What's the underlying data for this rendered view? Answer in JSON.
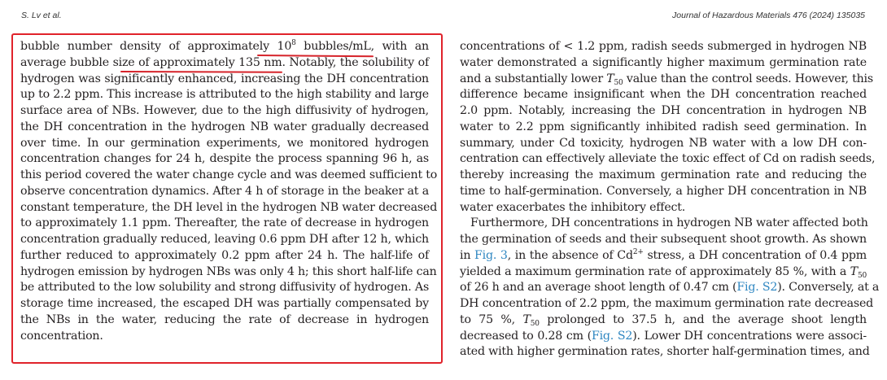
{
  "header": {
    "authors": "S. Lv et al.",
    "journal": "Journal of Hazardous Materials 476 (2024) 135035"
  },
  "left": {
    "l01": [
      "bubble number density of approximately ",
      "10",
      "8",
      " bubbles/mL",
      ", with an"
    ],
    "l02": [
      "average bubble ",
      "size of approximately 135 nm",
      ". Notably, the solubility of"
    ],
    "l03": "hydrogen was significantly enhanced, increasing the DH concentration",
    "l04": "up to 2.2 ppm. This increase is attributed to the high stability and large",
    "l05": "surface area of NBs. However, due to the high diffusivity of hydrogen,",
    "l06": "the DH concentration in the hydrogen NB water gradually decreased",
    "l07": "over time. In our germination experiments, we monitored hydrogen",
    "l08": "concentration changes for 24 h, despite the process spanning 96 h, as",
    "l09": "this period covered the water change cycle and was deemed sufficient to",
    "l10": "observe concentration dynamics. After 4 h of storage in the beaker at a",
    "l11": "constant temperature, the DH level in the hydrogen NB water decreased",
    "l12": "to approximately 1.1 ppm. Thereafter, the rate of decrease in hydrogen",
    "l13": "concentration gradually reduced, leaving 0.6 ppm DH after 12 h, which",
    "l14": "further reduced to approximately 0.2 ppm after 24 h. The half-life of",
    "l15": "hydrogen emission by hydrogen NBs was only 4 h; this short half-life can",
    "l16": "be attributed to the low solubility and strong diffusivity of hydrogen. As",
    "l17": "storage time increased, the escaped DH was partially compensated by",
    "l18": "the NBs in the water, reducing the rate of decrease in hydrogen",
    "l19": "concentration."
  },
  "right": {
    "r01": "concentrations of < 1.2 ppm, radish seeds submerged in hydrogen NB",
    "r02": "water demonstrated a significantly higher maximum germination rate",
    "r03": [
      "and a substantially lower ",
      "T",
      "50",
      " value than the control seeds. However, this"
    ],
    "r04": "difference became insignificant when the DH concentration reached",
    "r05": "2.0 ppm. Notably, increasing the DH concentration in hydrogen NB",
    "r06": "water to 2.2 ppm significantly inhibited radish seed germination. In",
    "r07": "summary, under Cd toxicity, hydrogen NB water with a low DH con-",
    "r08": "centration can effectively alleviate the toxic effect of Cd on radish seeds,",
    "r09": "thereby increasing the maximum germination rate and reducing the",
    "r10": "time to half-germination. Conversely, a higher DH concentration in NB",
    "r11": "water exacerbates the inhibitory effect.",
    "r12": "Furthermore, DH concentrations in hydrogen NB water affected both",
    "r13": "the germination of seeds and their subsequent shoot growth. As shown",
    "r14": [
      "in ",
      "Fig. 3",
      ", in the absence of Cd",
      "2+",
      " stress, a DH concentration of 0.4 ppm"
    ],
    "r15": [
      "yielded a maximum germination rate of approximately 85 %, with a ",
      "T",
      "50"
    ],
    "r16": [
      "of 26 h and an average shoot length of 0.47 cm (",
      "Fig. S2",
      "). Conversely, at a"
    ],
    "r17": "DH concentration of 2.2 ppm, the maximum germination rate decreased",
    "r18": [
      "to 75 %, ",
      "T",
      "50",
      " prolonged to 37.5 h, and the average shoot length"
    ],
    "r19": [
      "decreased to 0.28 cm (",
      "Fig. S2",
      "). Lower DH concentrations were associ-"
    ],
    "r20": "ated with higher germination rates, shorter half-germination times, and"
  },
  "annotation_color": "#e0232b",
  "link_color": "#2e86c1"
}
